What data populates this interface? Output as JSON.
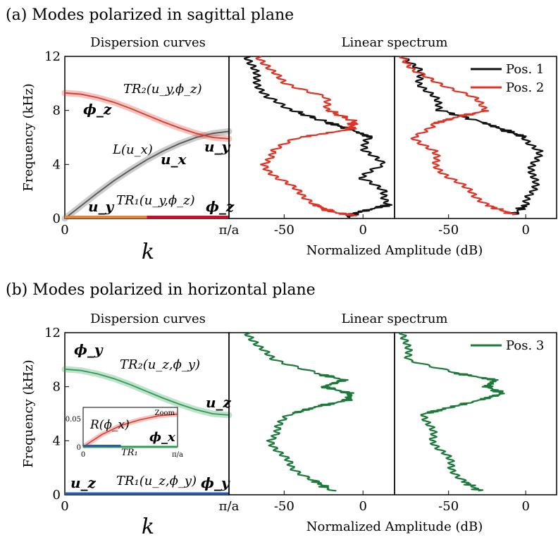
{
  "chart_data": [
    {
      "panel": "a",
      "heading": "(a)  Modes polarized in sagittal plane",
      "dispersion": {
        "type": "line",
        "title": "Dispersion curves",
        "xlabel": "k",
        "ylabel": "Frequency (kHz)",
        "ylim": [
          0,
          12
        ],
        "yticks": [
          "0",
          "4",
          "8",
          "12"
        ],
        "xticks": [
          "0",
          "π/a"
        ],
        "x": [
          0,
          0.1,
          0.2,
          0.3,
          0.4,
          0.5,
          0.6,
          0.7,
          0.8,
          0.9,
          1.0
        ],
        "series": [
          {
            "id": "L",
            "label": "L(u_x)",
            "color": "#555555",
            "y": [
              0,
              0.95,
              1.9,
              2.8,
              3.6,
              4.35,
              5.0,
              5.55,
              6.0,
              6.3,
              6.45
            ]
          },
          {
            "id": "TR2",
            "label": "TR₂(u_y,ϕ_z)",
            "color": "#d93a2e",
            "y": [
              9.3,
              9.2,
              8.95,
              8.6,
              8.15,
              7.65,
              7.15,
              6.7,
              6.3,
              6.0,
              5.9
            ]
          },
          {
            "id": "TR1",
            "label": "TR₁(u_y,ϕ_z)",
            "color": "#e8823a",
            "y": [
              0.05,
              0.05,
              0.05,
              0.05,
              0.05,
              0.05,
              0.05,
              0.05,
              0.05,
              0.05,
              0.05
            ]
          }
        ],
        "annotations": [
          "TR₂(u_y,ϕ_z)",
          "ϕ_z",
          "L(u_x)",
          "u_x",
          "u_y",
          "u_y",
          "TR₁(u_y,ϕ_z)",
          "ϕ_z"
        ]
      },
      "spectrum": {
        "type": "line",
        "title": "Linear spectrum",
        "xlabel": "Normalized Amplitude (dB)",
        "xticks": [
          "-50",
          "0"
        ],
        "legend": [
          {
            "name": "Pos. 1",
            "color": "#111111"
          },
          {
            "name": "Pos. 2",
            "color": "#e03326"
          }
        ],
        "legend_placement": "top-right",
        "subpanels": [
          {
            "series": [
              {
                "name": "Pos. 1",
                "color": "#111111",
                "points": [
                  [
                    12,
                    -72
                  ],
                  [
                    11,
                    -70
                  ],
                  [
                    10,
                    -66
                  ],
                  [
                    9,
                    -62
                  ],
                  [
                    8,
                    -45
                  ],
                  [
                    7.2,
                    -25
                  ],
                  [
                    6.6,
                    -8
                  ],
                  [
                    6,
                    5
                  ],
                  [
                    5,
                    0
                  ],
                  [
                    4,
                    14
                  ],
                  [
                    3,
                    -2
                  ],
                  [
                    2,
                    14
                  ],
                  [
                    1,
                    16
                  ],
                  [
                    0.4,
                    -5
                  ],
                  [
                    0.1,
                    -10
                  ]
                ]
              },
              {
                "name": "Pos. 2",
                "color": "#e03326",
                "points": [
                  [
                    12,
                    -65
                  ],
                  [
                    11,
                    -60
                  ],
                  [
                    10,
                    -48
                  ],
                  [
                    9,
                    -25
                  ],
                  [
                    8,
                    -22
                  ],
                  [
                    7.2,
                    -6
                  ],
                  [
                    6.6,
                    -8
                  ],
                  [
                    6,
                    -40
                  ],
                  [
                    5,
                    -58
                  ],
                  [
                    4,
                    -62
                  ],
                  [
                    3,
                    -55
                  ],
                  [
                    2,
                    -40
                  ],
                  [
                    1,
                    -30
                  ],
                  [
                    0.5,
                    -20
                  ],
                  [
                    0.2,
                    -5
                  ]
                ]
              }
            ]
          },
          {
            "series": [
              {
                "name": "Pos. 1",
                "color": "#111111",
                "points": [
                  [
                    12,
                    -78
                  ],
                  [
                    11,
                    -70
                  ],
                  [
                    10,
                    -68
                  ],
                  [
                    9,
                    -60
                  ],
                  [
                    8,
                    -55
                  ],
                  [
                    7.2,
                    -30
                  ],
                  [
                    6.6,
                    -15
                  ],
                  [
                    6,
                    0
                  ],
                  [
                    5,
                    8
                  ],
                  [
                    4,
                    5
                  ],
                  [
                    3,
                    5
                  ],
                  [
                    2,
                    5
                  ],
                  [
                    1,
                    0
                  ],
                  [
                    0.3,
                    -8
                  ]
                ]
              },
              {
                "name": "Pos. 2",
                "color": "#e03326",
                "points": [
                  [
                    12,
                    -78
                  ],
                  [
                    11,
                    -75
                  ],
                  [
                    10,
                    -55
                  ],
                  [
                    9,
                    -35
                  ],
                  [
                    8,
                    -25
                  ],
                  [
                    7.5,
                    -45
                  ],
                  [
                    7,
                    -60
                  ],
                  [
                    6,
                    -72
                  ],
                  [
                    5,
                    -60
                  ],
                  [
                    4,
                    -58
                  ],
                  [
                    3,
                    -50
                  ],
                  [
                    2,
                    -35
                  ],
                  [
                    1,
                    -25
                  ],
                  [
                    0.3,
                    -8
                  ]
                ]
              }
            ]
          }
        ]
      }
    },
    {
      "panel": "b",
      "heading": "(b)  Modes polarized in horizontal plane",
      "dispersion": {
        "type": "line",
        "title": "Dispersion curves",
        "xlabel": "k",
        "ylabel": "Frequency (kHz)",
        "ylim": [
          0,
          12
        ],
        "yticks": [
          "0",
          "4",
          "8",
          "12"
        ],
        "xticks": [
          "0",
          "π/a"
        ],
        "x": [
          0,
          0.1,
          0.2,
          0.3,
          0.4,
          0.5,
          0.6,
          0.7,
          0.8,
          0.9,
          1.0
        ],
        "series": [
          {
            "id": "TR2",
            "label": "TR₂(u_z,ϕ_y)",
            "color": "#2e9c52",
            "y": [
              9.3,
              9.2,
              8.95,
              8.6,
              8.15,
              7.65,
              7.15,
              6.7,
              6.3,
              6.0,
              5.9
            ]
          },
          {
            "id": "TR1",
            "label": "TR₁(u_z,ϕ_y)",
            "color": "#2a5da8",
            "y": [
              0.05,
              0.05,
              0.05,
              0.05,
              0.05,
              0.05,
              0.05,
              0.05,
              0.05,
              0.05,
              0.05
            ]
          }
        ],
        "annotations": [
          "ϕ_y",
          "TR₂(u_z,ϕ_y)",
          "u_z",
          "u_z",
          "TR₁(u_z,ϕ_y)",
          "ϕ_y"
        ],
        "inset": {
          "label": "Zoom",
          "yticks": [
            "0",
            "0.05"
          ],
          "xticks": [
            "0",
            "π/a"
          ],
          "x": [
            0,
            0.2,
            0.4,
            0.6,
            0.8,
            1.0
          ],
          "series": [
            {
              "label": "R(ϕ_x)",
              "color": "#d93a2e",
              "y": [
                0,
                0.022,
                0.038,
                0.048,
                0.055,
                0.058
              ]
            },
            {
              "label": "TR₁",
              "color": "#2e9c52",
              "y": [
                0,
                0,
                0,
                0,
                0,
                0
              ]
            }
          ],
          "annotations": [
            "R(ϕ_x)",
            "ϕ_x",
            "TR₁"
          ]
        }
      },
      "spectrum": {
        "type": "line",
        "title": "Linear spectrum",
        "xlabel": "Normalized Amplitude (dB)",
        "xticks": [
          "-50",
          "0"
        ],
        "legend": [
          {
            "name": "Pos. 3",
            "color": "#1b7a3a"
          }
        ],
        "legend_placement": "top-right",
        "subpanels": [
          {
            "series": [
              {
                "name": "Pos. 3",
                "color": "#1b7a3a",
                "points": [
                  [
                    12,
                    -72
                  ],
                  [
                    11,
                    -68
                  ],
                  [
                    10,
                    -55
                  ],
                  [
                    9,
                    -30
                  ],
                  [
                    8.5,
                    -12
                  ],
                  [
                    8,
                    -25
                  ],
                  [
                    7.5,
                    -8
                  ],
                  [
                    7,
                    -10
                  ],
                  [
                    6.5,
                    -30
                  ],
                  [
                    6,
                    -45
                  ],
                  [
                    5,
                    -55
                  ],
                  [
                    4,
                    -58
                  ],
                  [
                    3,
                    -52
                  ],
                  [
                    2,
                    -45
                  ],
                  [
                    1,
                    -30
                  ],
                  [
                    0.3,
                    -20
                  ]
                ]
              }
            ]
          },
          {
            "series": [
              {
                "name": "Pos. 3",
                "color": "#1b7a3a",
                "points": [
                  [
                    12,
                    -78
                  ],
                  [
                    11,
                    -78
                  ],
                  [
                    10,
                    -75
                  ],
                  [
                    9,
                    -45
                  ],
                  [
                    8.5,
                    -20
                  ],
                  [
                    8,
                    -25
                  ],
                  [
                    7.5,
                    -15
                  ],
                  [
                    7,
                    -30
                  ],
                  [
                    6.3,
                    -55
                  ],
                  [
                    6,
                    -65
                  ],
                  [
                    5,
                    -62
                  ],
                  [
                    4,
                    -60
                  ],
                  [
                    3,
                    -52
                  ],
                  [
                    2,
                    -48
                  ],
                  [
                    1,
                    -40
                  ],
                  [
                    0.3,
                    -30
                  ]
                ]
              }
            ]
          }
        ]
      }
    }
  ]
}
